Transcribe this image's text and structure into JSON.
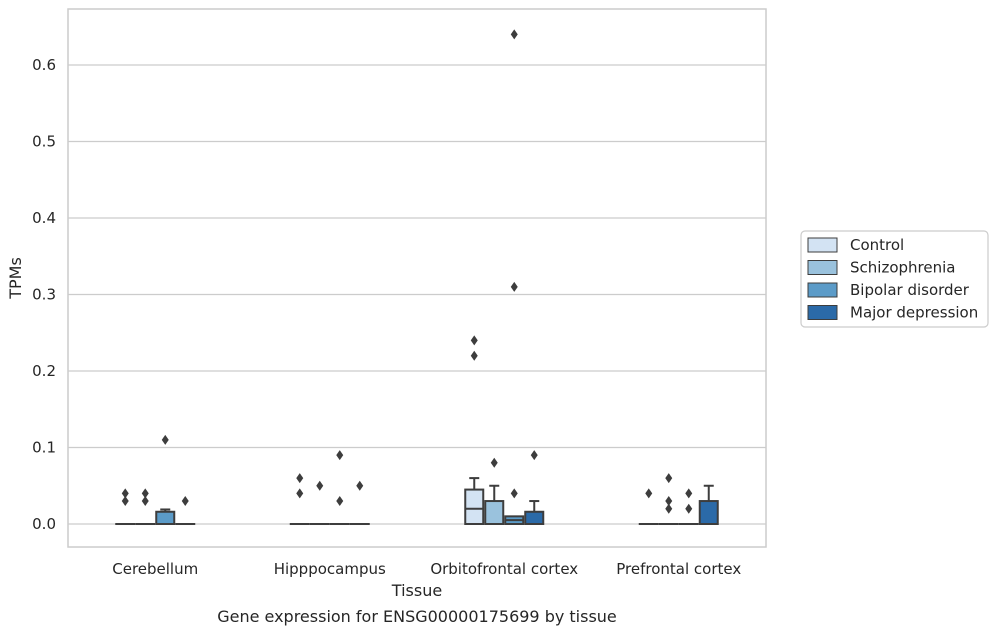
{
  "chart_data": {
    "type": "box",
    "title": "",
    "caption": "Gene expression for ENSG00000175699 by tissue",
    "xlabel": "Tissue",
    "ylabel": "TPMs",
    "ylim": [
      -0.032,
      0.675
    ],
    "yticks": [
      0.0,
      0.1,
      0.2,
      0.3,
      0.4,
      0.5,
      0.6
    ],
    "ytick_labels": [
      "0.0",
      "0.1",
      "0.2",
      "0.3",
      "0.4",
      "0.5",
      "0.6"
    ],
    "grid": "horizontal",
    "legend_position": "right",
    "categories": [
      "Cerebellum",
      "Hipppocampus",
      "Orbitofrontal cortex",
      "Prefrontal cortex"
    ],
    "series": [
      {
        "name": "Control",
        "color": "#d3e3f3",
        "boxes": [
          {
            "q1": 0,
            "median": 0,
            "q3": 0,
            "whisker_low": 0,
            "whisker_high": 0,
            "outliers": [
              0.03,
              0.04
            ]
          },
          {
            "q1": 0,
            "median": 0,
            "q3": 0,
            "whisker_low": 0,
            "whisker_high": 0,
            "outliers": [
              0.04,
              0.06
            ]
          },
          {
            "q1": 0,
            "median": 0.02,
            "q3": 0.045,
            "whisker_low": 0,
            "whisker_high": 0.06,
            "outliers": [
              0.22,
              0.24
            ]
          },
          {
            "q1": 0,
            "median": 0,
            "q3": 0,
            "whisker_low": 0,
            "whisker_high": 0,
            "outliers": [
              0.04
            ]
          }
        ]
      },
      {
        "name": "Schizophrenia",
        "color": "#9ac2dd",
        "boxes": [
          {
            "q1": 0,
            "median": 0,
            "q3": 0,
            "whisker_low": 0,
            "whisker_high": 0,
            "outliers": [
              0.03,
              0.04
            ]
          },
          {
            "q1": 0,
            "median": 0,
            "q3": 0,
            "whisker_low": 0,
            "whisker_high": 0,
            "outliers": [
              0.05
            ]
          },
          {
            "q1": 0,
            "median": 0,
            "q3": 0.03,
            "whisker_low": 0,
            "whisker_high": 0.05,
            "outliers": [
              0.08
            ]
          },
          {
            "q1": 0,
            "median": 0,
            "q3": 0,
            "whisker_low": 0,
            "whisker_high": 0,
            "outliers": [
              0.02,
              0.03,
              0.06
            ]
          }
        ]
      },
      {
        "name": "Bipolar disorder",
        "color": "#5b9bc8",
        "boxes": [
          {
            "q1": 0,
            "median": 0,
            "q3": 0.016,
            "whisker_low": 0,
            "whisker_high": 0.019,
            "outliers": [
              0.11
            ]
          },
          {
            "q1": 0,
            "median": 0,
            "q3": 0,
            "whisker_low": 0,
            "whisker_high": 0,
            "outliers": [
              0.03,
              0.09
            ]
          },
          {
            "q1": 0,
            "median": 0.005,
            "q3": 0.01,
            "whisker_low": 0,
            "whisker_high": 0.01,
            "outliers": [
              0.04,
              0.31,
              0.64
            ]
          },
          {
            "q1": 0,
            "median": 0,
            "q3": 0,
            "whisker_low": 0,
            "whisker_high": 0,
            "outliers": [
              0.02,
              0.04
            ]
          }
        ]
      },
      {
        "name": "Major depression",
        "color": "#2b6aa8",
        "boxes": [
          {
            "q1": 0,
            "median": 0,
            "q3": 0,
            "whisker_low": 0,
            "whisker_high": 0,
            "outliers": [
              0.03
            ]
          },
          {
            "q1": 0,
            "median": 0,
            "q3": 0,
            "whisker_low": 0,
            "whisker_high": 0,
            "outliers": [
              0.05
            ]
          },
          {
            "q1": 0,
            "median": 0,
            "q3": 0.016,
            "whisker_low": 0,
            "whisker_high": 0.03,
            "outliers": [
              0.09
            ]
          },
          {
            "q1": 0,
            "median": 0,
            "q3": 0.03,
            "whisker_low": 0,
            "whisker_high": 0.05,
            "outliers": []
          }
        ]
      }
    ]
  }
}
